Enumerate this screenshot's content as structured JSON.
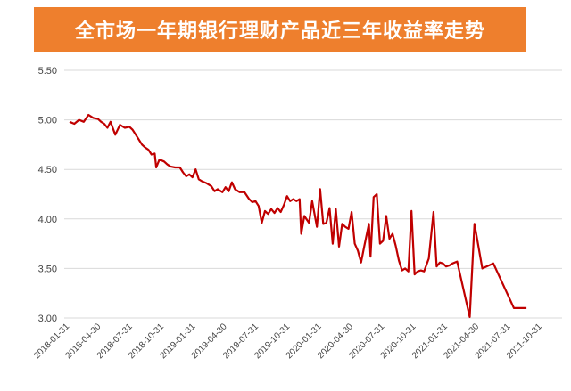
{
  "title": "全市场一年期银行理财产品近三年收益率走势",
  "colors": {
    "banner": "#ee7f2d",
    "line": "#c00000",
    "grid": "#d9d9d9"
  },
  "chart_data": {
    "type": "line",
    "title": "全市场一年期银行理财产品近三年收益率走势",
    "xlabel": "",
    "ylabel": "",
    "ylim": [
      3.0,
      5.5
    ],
    "y_ticks": [
      "3.00",
      "3.50",
      "4.00",
      "4.50",
      "5.00",
      "5.50"
    ],
    "x_ticks": [
      "2018-01-31",
      "2018-04-30",
      "2018-07-31",
      "2018-10-31",
      "2019-01-31",
      "2019-04-30",
      "2019-07-31",
      "2019-10-31",
      "2020-01-31",
      "2020-04-30",
      "2020-07-31",
      "2020-10-31",
      "2021-01-31",
      "2021-04-30",
      "2021-07-31",
      "2021-10-31"
    ],
    "grid": "horizontal",
    "legend": "none",
    "series": [
      {
        "values": [
          [
            0,
            4.98
          ],
          [
            0.15,
            4.96
          ],
          [
            0.3,
            5.0
          ],
          [
            0.45,
            4.98
          ],
          [
            0.6,
            5.05
          ],
          [
            0.75,
            5.02
          ],
          [
            0.9,
            5.01
          ],
          [
            1.0,
            4.98
          ],
          [
            1.1,
            4.96
          ],
          [
            1.2,
            4.92
          ],
          [
            1.3,
            4.98
          ],
          [
            1.45,
            4.85
          ],
          [
            1.6,
            4.95
          ],
          [
            1.75,
            4.92
          ],
          [
            1.9,
            4.93
          ],
          [
            2.0,
            4.9
          ],
          [
            2.1,
            4.85
          ],
          [
            2.2,
            4.8
          ],
          [
            2.3,
            4.75
          ],
          [
            2.4,
            4.72
          ],
          [
            2.5,
            4.7
          ],
          [
            2.6,
            4.65
          ],
          [
            2.7,
            4.66
          ],
          [
            2.75,
            4.52
          ],
          [
            2.85,
            4.6
          ],
          [
            3.0,
            4.58
          ],
          [
            3.1,
            4.55
          ],
          [
            3.2,
            4.53
          ],
          [
            3.35,
            4.52
          ],
          [
            3.5,
            4.52
          ],
          [
            3.6,
            4.47
          ],
          [
            3.7,
            4.43
          ],
          [
            3.8,
            4.45
          ],
          [
            3.9,
            4.42
          ],
          [
            4.0,
            4.5
          ],
          [
            4.1,
            4.4
          ],
          [
            4.2,
            4.38
          ],
          [
            4.35,
            4.36
          ],
          [
            4.5,
            4.33
          ],
          [
            4.6,
            4.28
          ],
          [
            4.7,
            4.3
          ],
          [
            4.85,
            4.27
          ],
          [
            4.95,
            4.32
          ],
          [
            5.05,
            4.28
          ],
          [
            5.15,
            4.37
          ],
          [
            5.25,
            4.3
          ],
          [
            5.4,
            4.27
          ],
          [
            5.55,
            4.27
          ],
          [
            5.7,
            4.2
          ],
          [
            5.8,
            4.17
          ],
          [
            5.9,
            4.18
          ],
          [
            6.0,
            4.13
          ],
          [
            6.1,
            3.96
          ],
          [
            6.2,
            4.08
          ],
          [
            6.3,
            4.05
          ],
          [
            6.4,
            4.1
          ],
          [
            6.5,
            4.06
          ],
          [
            6.6,
            4.11
          ],
          [
            6.7,
            4.07
          ],
          [
            6.8,
            4.14
          ],
          [
            6.9,
            4.23
          ],
          [
            7.0,
            4.18
          ],
          [
            7.1,
            4.2
          ],
          [
            7.2,
            4.18
          ],
          [
            7.3,
            4.2
          ],
          [
            7.35,
            3.85
          ],
          [
            7.45,
            4.03
          ],
          [
            7.6,
            3.96
          ],
          [
            7.7,
            4.18
          ],
          [
            7.85,
            3.92
          ],
          [
            7.95,
            4.3
          ],
          [
            8.05,
            3.95
          ],
          [
            8.15,
            3.96
          ],
          [
            8.25,
            4.11
          ],
          [
            8.35,
            3.75
          ],
          [
            8.45,
            4.1
          ],
          [
            8.55,
            3.72
          ],
          [
            8.65,
            3.95
          ],
          [
            8.75,
            3.92
          ],
          [
            8.85,
            3.9
          ],
          [
            8.95,
            4.07
          ],
          [
            9.05,
            3.75
          ],
          [
            9.15,
            3.68
          ],
          [
            9.25,
            3.56
          ],
          [
            9.35,
            3.72
          ],
          [
            9.5,
            3.95
          ],
          [
            9.55,
            3.62
          ],
          [
            9.65,
            4.22
          ],
          [
            9.75,
            4.25
          ],
          [
            9.85,
            3.75
          ],
          [
            9.95,
            3.78
          ],
          [
            10.05,
            4.03
          ],
          [
            10.15,
            3.8
          ],
          [
            10.25,
            3.85
          ],
          [
            10.35,
            3.73
          ],
          [
            10.45,
            3.58
          ],
          [
            10.55,
            3.48
          ],
          [
            10.65,
            3.5
          ],
          [
            10.75,
            3.47
          ],
          [
            10.85,
            4.08
          ],
          [
            10.95,
            3.44
          ],
          [
            11.05,
            3.47
          ],
          [
            11.15,
            3.48
          ],
          [
            11.25,
            3.47
          ],
          [
            11.4,
            3.6
          ],
          [
            11.55,
            4.07
          ],
          [
            11.65,
            3.52
          ],
          [
            11.75,
            3.56
          ],
          [
            11.85,
            3.55
          ],
          [
            11.95,
            3.52
          ],
          [
            12.05,
            3.53
          ],
          [
            12.15,
            3.55
          ],
          [
            12.3,
            3.57
          ],
          [
            12.7,
            3.01
          ],
          [
            12.85,
            3.95
          ],
          [
            13.1,
            3.5
          ],
          [
            13.45,
            3.55
          ],
          [
            14.1,
            3.1
          ],
          [
            14.3,
            3.1
          ],
          [
            14.5,
            3.1
          ]
        ]
      }
    ]
  }
}
